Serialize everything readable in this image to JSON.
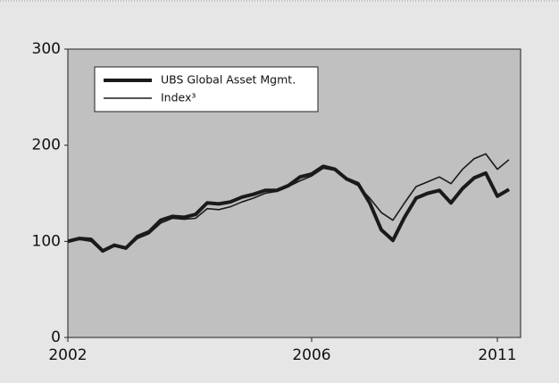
{
  "chart_data": {
    "type": "line",
    "categories": [
      "2002",
      null,
      null,
      null,
      null,
      null,
      null,
      null,
      null,
      null,
      null,
      null,
      null,
      null,
      null,
      null,
      null,
      null,
      null,
      null,
      null,
      "2006",
      null,
      null,
      null,
      null,
      null,
      null,
      null,
      null,
      null,
      null,
      null,
      null,
      null,
      null,
      null,
      "2011",
      null
    ],
    "series": [
      {
        "name": "UBS Global Asset Mgmt.",
        "color": "#1a1a1a",
        "width": 4,
        "values": [
          100,
          103,
          102,
          90,
          96,
          93,
          105,
          110,
          122,
          126,
          125,
          128,
          140,
          139,
          141,
          146,
          149,
          153,
          153,
          158,
          167,
          170,
          178,
          175,
          165,
          160,
          140,
          112,
          101,
          125,
          145,
          150,
          153,
          140,
          155,
          166,
          171,
          147,
          154
        ]
      },
      {
        "name": "Index³",
        "color": "#1a1a1a",
        "width": 1.6,
        "values": [
          100,
          102,
          100,
          89,
          95,
          92,
          103,
          108,
          119,
          124,
          123,
          124,
          134,
          133,
          136,
          141,
          145,
          150,
          152,
          157,
          163,
          168,
          176,
          174,
          164,
          158,
          145,
          130,
          122,
          140,
          157,
          162,
          167,
          160,
          175,
          186,
          191,
          175,
          185
        ]
      }
    ],
    "ylim": [
      0,
      300
    ],
    "yticks": [
      0,
      100,
      200,
      300
    ],
    "grid": false
  }
}
